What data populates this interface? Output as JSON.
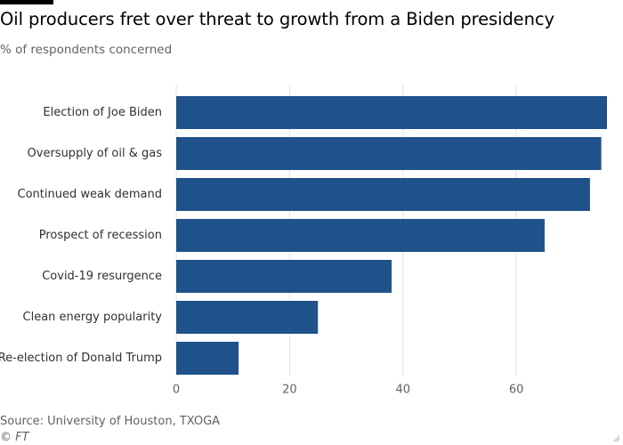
{
  "header": {
    "title": "Oil producers fret over threat to growth from a Biden presidency",
    "subtitle": "% of respondents concerned"
  },
  "footer": {
    "source": "Source: University of Houston, TXOGA",
    "credit": "© FT"
  },
  "colors": {
    "bar": "#1f528a",
    "gridline": "#e6e3df",
    "tick_text": "#66605c",
    "label_text": "#33302e"
  },
  "chart_data": {
    "type": "bar",
    "orientation": "horizontal",
    "categories": [
      "Election of Joe Biden",
      "Oversupply of oil & gas",
      "Continued weak demand",
      "Prospect of recession",
      "Covid-19 resurgence",
      "Clean energy popularity",
      "Re-election of Donald Trump"
    ],
    "values": [
      76,
      75,
      73,
      65,
      38,
      25,
      11
    ],
    "xlim": [
      0,
      76
    ],
    "xticks": [
      0,
      20,
      40,
      60
    ],
    "grid": true
  }
}
